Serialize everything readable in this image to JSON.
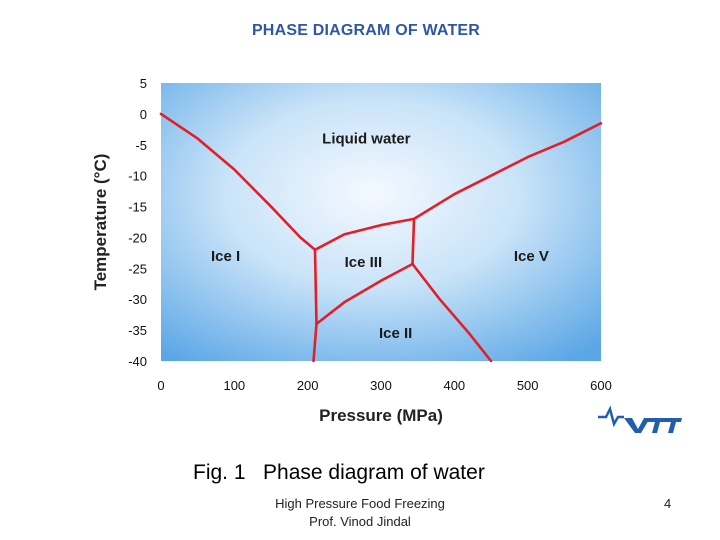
{
  "slide": {
    "title": "PHASE DIAGRAM OF WATER",
    "caption": "Fig. 1   Phase diagram of water",
    "footer_line1": "High Pressure Food Freezing",
    "footer_line2": "Prof. Vinod Jindal",
    "page_number": "4",
    "logo_text": "VTT"
  },
  "colors": {
    "title": "#2e57a8",
    "boundary": "#e41e26",
    "plot_center": "#f4f9ff",
    "plot_edge": "#5aa6e6",
    "logo": "#1f5fae"
  },
  "chart_data": {
    "type": "line",
    "title": "PHASE DIAGRAM OF WATER",
    "xlabel": "Pressure (MPa)",
    "ylabel": "Temperature (°C)",
    "xlim": [
      0,
      600
    ],
    "ylim": [
      -40,
      5
    ],
    "x_ticks": [
      0,
      100,
      200,
      300,
      400,
      500,
      600
    ],
    "y_ticks": [
      5,
      0,
      -5,
      -10,
      -15,
      -20,
      -25,
      -30,
      -35,
      -40
    ],
    "grid": false,
    "legend": "none",
    "regions": [
      {
        "label": "Liquid water",
        "x": 280,
        "y": -4
      },
      {
        "label": "Ice I",
        "x": 88,
        "y": -23
      },
      {
        "label": "Ice III",
        "x": 276,
        "y": -24
      },
      {
        "label": "Ice V",
        "x": 505,
        "y": -23
      },
      {
        "label": "Ice II",
        "x": 320,
        "y": -35.5
      }
    ],
    "series": [
      {
        "points": [
          [
            0,
            0
          ],
          [
            50,
            -4
          ],
          [
            100,
            -9
          ],
          [
            150,
            -15
          ],
          [
            190,
            -20
          ],
          [
            210,
            -22
          ]
        ]
      },
      {
        "points": [
          [
            210,
            -22
          ],
          [
            250,
            -19.5
          ],
          [
            300,
            -18
          ],
          [
            345,
            -17
          ]
        ]
      },
      {
        "points": [
          [
            345,
            -17
          ],
          [
            400,
            -13
          ],
          [
            450,
            -10
          ],
          [
            500,
            -7
          ],
          [
            550,
            -4.5
          ],
          [
            600,
            -1.5
          ]
        ]
      },
      {
        "points": [
          [
            345,
            -17
          ],
          [
            343,
            -24.3
          ]
        ]
      },
      {
        "points": [
          [
            210,
            -22
          ],
          [
            212,
            -34
          ]
        ]
      },
      {
        "points": [
          [
            212,
            -34
          ],
          [
            250,
            -30.5
          ],
          [
            300,
            -27
          ],
          [
            343,
            -24.3
          ]
        ]
      },
      {
        "points": [
          [
            212,
            -34
          ],
          [
            208,
            -40
          ]
        ]
      },
      {
        "points": [
          [
            343,
            -24.3
          ],
          [
            380,
            -30
          ],
          [
            420,
            -35.5
          ],
          [
            450,
            -40
          ]
        ]
      }
    ]
  }
}
